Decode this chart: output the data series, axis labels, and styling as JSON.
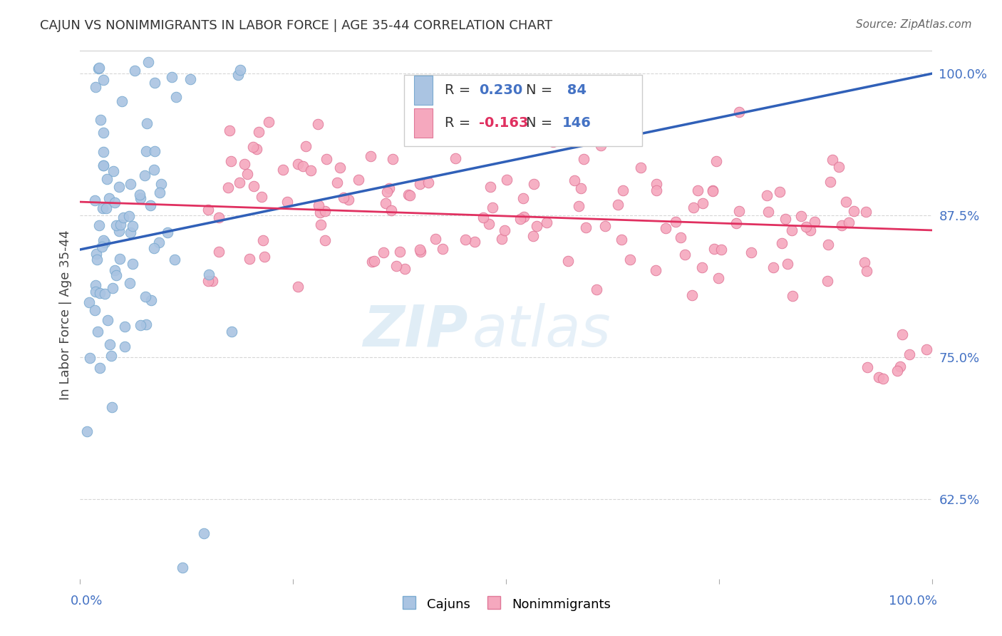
{
  "title": "CAJUN VS NONIMMIGRANTS IN LABOR FORCE | AGE 35-44 CORRELATION CHART",
  "source": "Source: ZipAtlas.com",
  "ylabel": "In Labor Force | Age 35-44",
  "xlim": [
    0.0,
    1.0
  ],
  "ylim": [
    0.555,
    1.02
  ],
  "yticks": [
    0.625,
    0.75,
    0.875,
    1.0
  ],
  "ytick_labels": [
    "62.5%",
    "75.0%",
    "87.5%",
    "100.0%"
  ],
  "cajun_color": "#aac4e2",
  "cajun_edge_color": "#7aaad0",
  "nonimmigrant_color": "#f5a8be",
  "nonimmigrant_edge_color": "#e07898",
  "cajun_line_color": "#3060b8",
  "nonimmigrant_line_color": "#e03060",
  "cajun_R": 0.23,
  "cajun_N": 84,
  "nonimmigrant_R": -0.163,
  "nonimmigrant_N": 146,
  "legend_label_cajun": "Cajuns",
  "legend_label_nonimmigrant": "Nonimmigrants",
  "watermark_zip": "ZIP",
  "watermark_atlas": "atlas",
  "background_color": "#ffffff",
  "grid_color": "#cccccc",
  "title_color": "#333333",
  "axis_label_color": "#4472c4",
  "legend_cajun_R_color": "#4472c4",
  "legend_nonimm_R_color": "#e03060",
  "legend_N_color": "#4472c4",
  "legend_text_color": "#333333"
}
